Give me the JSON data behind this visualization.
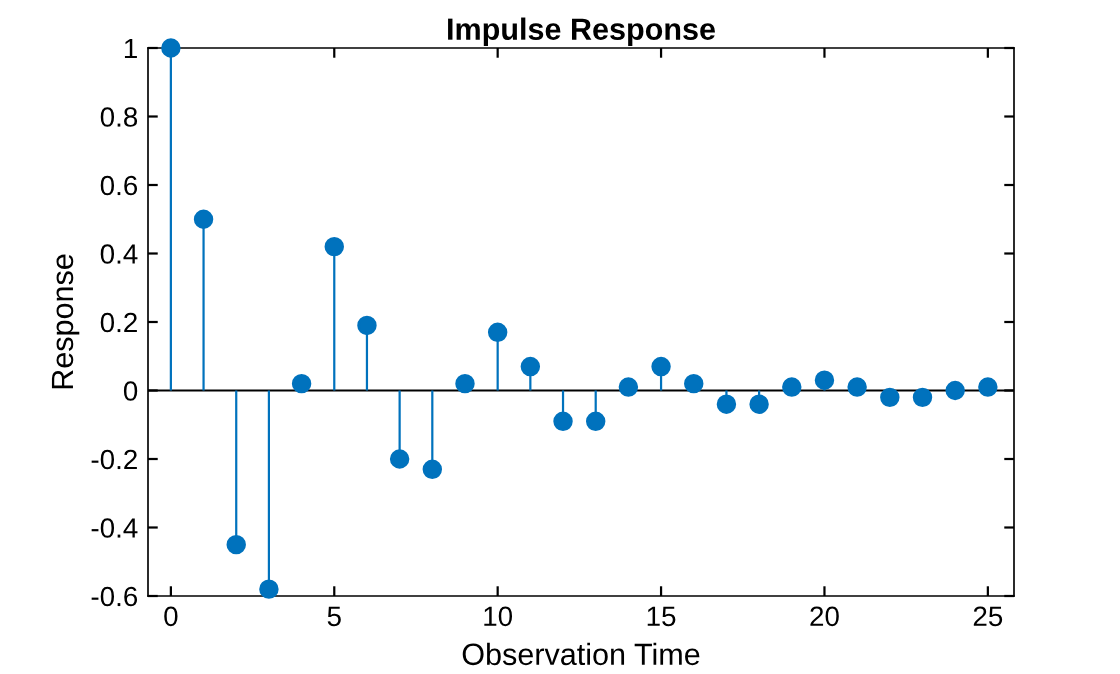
{
  "chart_data": {
    "type": "lollipop",
    "title": "Impulse Response",
    "xlabel": "Observation Time",
    "ylabel": "Response",
    "x": [
      0,
      1,
      2,
      3,
      4,
      5,
      6,
      7,
      8,
      9,
      10,
      11,
      12,
      13,
      14,
      15,
      16,
      17,
      18,
      19,
      20,
      21,
      22,
      23,
      24,
      25
    ],
    "values": [
      1.0,
      0.5,
      -0.45,
      -0.58,
      0.02,
      0.42,
      0.19,
      -0.2,
      -0.23,
      0.02,
      0.17,
      0.07,
      -0.09,
      -0.09,
      0.01,
      0.07,
      0.02,
      -0.04,
      -0.04,
      0.01,
      0.03,
      0.01,
      -0.02,
      -0.02,
      0.0,
      0.01
    ],
    "color": "#0072bd",
    "marker": "circle",
    "xlim": [
      -0.7,
      25.8
    ],
    "xticks": [
      0,
      5,
      10,
      15,
      20,
      25
    ],
    "ylim": [
      -0.6,
      1
    ],
    "yticks": [
      -0.6,
      -0.4,
      -0.2,
      0,
      0.2,
      0.4,
      0.6,
      0.8,
      1
    ],
    "ref_lines": [
      {
        "axis": "y",
        "value": 0,
        "color": "#000000"
      }
    ],
    "grid": false
  }
}
